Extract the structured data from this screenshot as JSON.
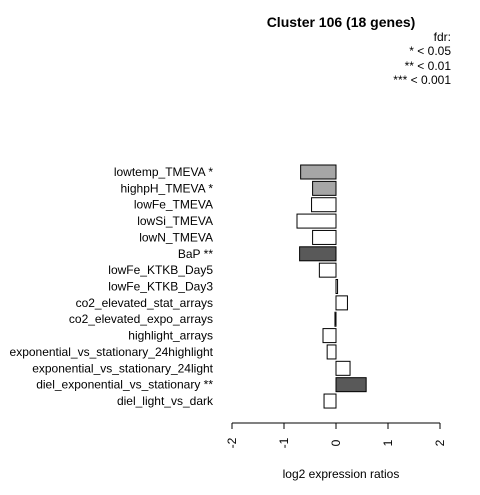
{
  "chart_data": {
    "type": "bar",
    "orientation": "horizontal",
    "title": "Cluster 106 (18 genes)",
    "xlabel": "log2 expression ratios",
    "ylabel": "",
    "xlim": [
      -2,
      2
    ],
    "xticks": [
      -2,
      -1,
      0,
      1,
      2
    ],
    "xtick_labels": [
      "-2",
      "-1",
      "0",
      "1",
      "2"
    ],
    "grid": false,
    "legend": {
      "placement": "top-right",
      "lines": [
        "fdr:",
        "* < 0.05",
        "** < 0.01",
        "*** < 0.001"
      ]
    },
    "categories": [
      "lowtemp_TMEVA *",
      "highpH_TMEVA *",
      "lowFe_TMEVA",
      "lowSi_TMEVA",
      "lowN_TMEVA",
      "BaP **",
      "lowFe_KTKB_Day5",
      "lowFe_KTKB_Day3",
      "co2_elevated_stat_arrays",
      "co2_elevated_expo_arrays",
      "highlight_arrays",
      "exponential_vs_stationary_24highlight",
      "exponential_vs_stationary_24light",
      "diel_exponential_vs_stationary **",
      "diel_light_vs_dark"
    ],
    "values": [
      -0.68,
      -0.45,
      -0.47,
      -0.75,
      -0.45,
      -0.7,
      -0.32,
      0.03,
      0.22,
      -0.02,
      -0.25,
      -0.17,
      0.27,
      0.58,
      -0.23
    ],
    "colors": [
      "#a6a6a6",
      "#a6a6a6",
      "#ffffff",
      "#ffffff",
      "#ffffff",
      "#595959",
      "#ffffff",
      "#ffffff",
      "#ffffff",
      "#ffffff",
      "#ffffff",
      "#ffffff",
      "#ffffff",
      "#595959",
      "#ffffff"
    ]
  }
}
